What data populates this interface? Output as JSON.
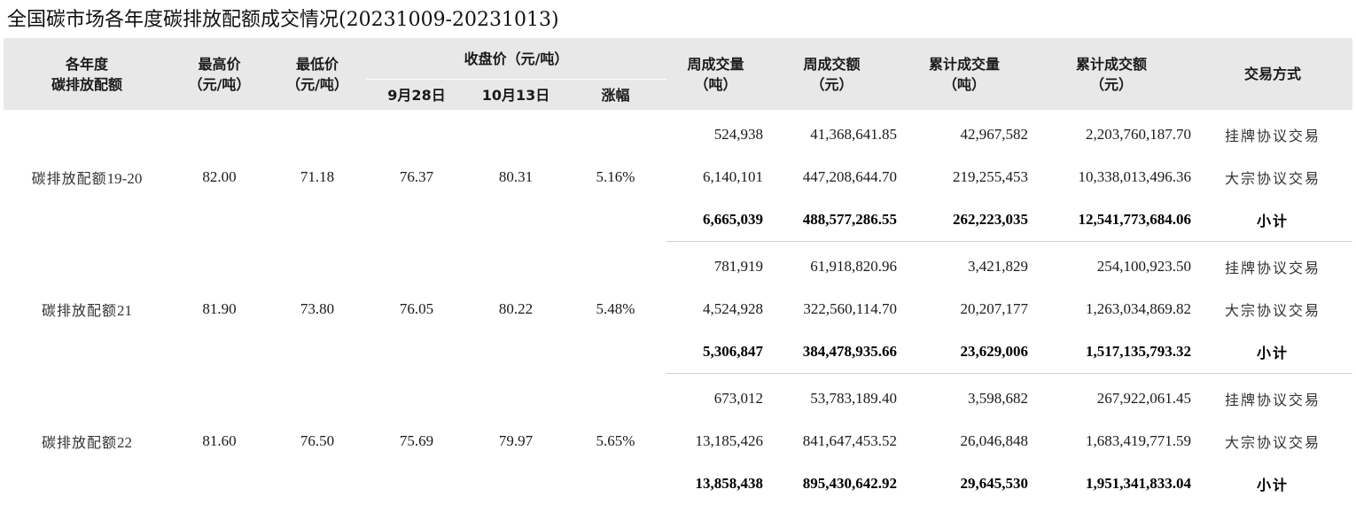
{
  "title": "全国碳市场各年度碳排放配额成交情况(20231009-20231013)",
  "header": {
    "col_name": [
      "各年度",
      "碳排放配额"
    ],
    "col_high": [
      "最高价",
      "（元/吨）"
    ],
    "col_low": [
      "最低价",
      "（元/吨）"
    ],
    "close_group": "收盘价（元/吨）",
    "close_date1": "9月28日",
    "close_date2": "10月13日",
    "close_change": "涨幅",
    "col_week_vol": [
      "周成交量",
      "（吨）"
    ],
    "col_week_amt": [
      "周成交额",
      "（元）"
    ],
    "col_cum_vol": [
      "累计成交量",
      "（吨）"
    ],
    "col_cum_amt": [
      "累计成交额",
      "（元）"
    ],
    "col_mode": "交易方式"
  },
  "groups": [
    {
      "name": "碳排放配额",
      "name_suffix": "19-20",
      "high": "82.00",
      "low": "71.18",
      "close_1": "76.37",
      "close_2": "80.31",
      "change": "5.16%",
      "rows": [
        {
          "week_vol": "524,938",
          "week_amt": "41,368,641.85",
          "cum_vol": "42,967,582",
          "cum_amt": "2,203,760,187.70",
          "mode": "挂牌协议交易"
        },
        {
          "week_vol": "6,140,101",
          "week_amt": "447,208,644.70",
          "cum_vol": "219,255,453",
          "cum_amt": "10,338,013,496.36",
          "mode": "大宗协议交易"
        },
        {
          "week_vol": "6,665,039",
          "week_amt": "488,577,286.55",
          "cum_vol": "262,223,035",
          "cum_amt": "12,541,773,684.06",
          "mode": "小计"
        }
      ]
    },
    {
      "name": "碳排放配额",
      "name_suffix": "21",
      "high": "81.90",
      "low": "73.80",
      "close_1": "76.05",
      "close_2": "80.22",
      "change": "5.48%",
      "rows": [
        {
          "week_vol": "781,919",
          "week_amt": "61,918,820.96",
          "cum_vol": "3,421,829",
          "cum_amt": "254,100,923.50",
          "mode": "挂牌协议交易"
        },
        {
          "week_vol": "4,524,928",
          "week_amt": "322,560,114.70",
          "cum_vol": "20,207,177",
          "cum_amt": "1,263,034,869.82",
          "mode": "大宗协议交易"
        },
        {
          "week_vol": "5,306,847",
          "week_amt": "384,478,935.66",
          "cum_vol": "23,629,006",
          "cum_amt": "1,517,135,793.32",
          "mode": "小计"
        }
      ]
    },
    {
      "name": "碳排放配额",
      "name_suffix": "22",
      "high": "81.60",
      "low": "76.50",
      "close_1": "75.69",
      "close_2": "79.97",
      "change": "5.65%",
      "rows": [
        {
          "week_vol": "673,012",
          "week_amt": "53,783,189.40",
          "cum_vol": "3,598,682",
          "cum_amt": "267,922,061.45",
          "mode": "挂牌协议交易"
        },
        {
          "week_vol": "13,185,426",
          "week_amt": "841,647,453.52",
          "cum_vol": "26,046,848",
          "cum_amt": "1,683,419,771.59",
          "mode": "大宗协议交易"
        },
        {
          "week_vol": "13,858,438",
          "week_amt": "895,430,642.92",
          "cum_vol": "29,645,530",
          "cum_amt": "1,951,341,833.04",
          "mode": "小计"
        }
      ]
    }
  ]
}
